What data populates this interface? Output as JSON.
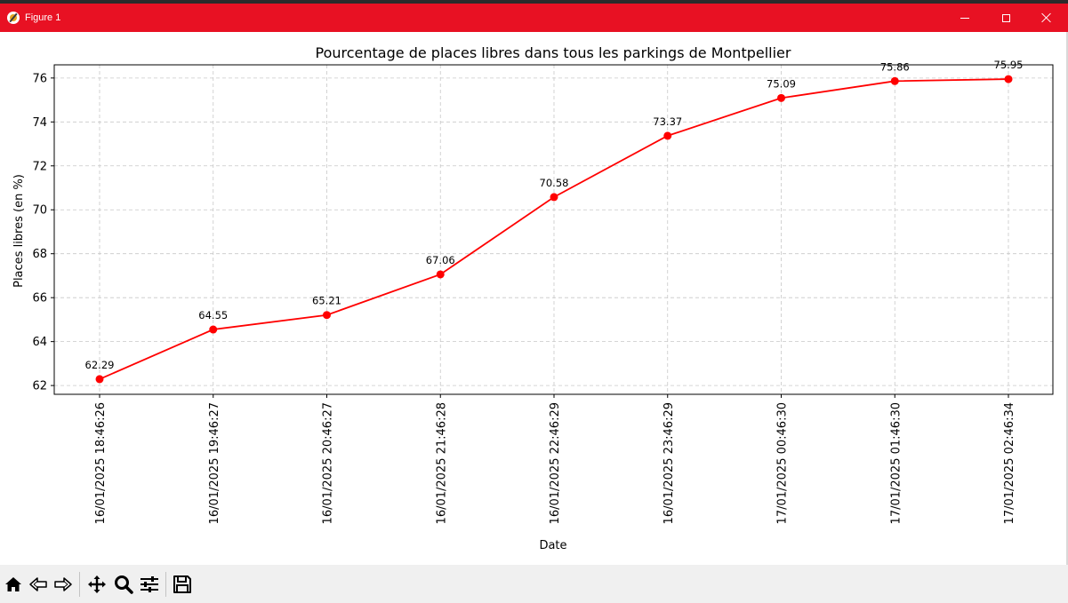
{
  "window": {
    "title": "Figure 1"
  },
  "toolbar": {
    "tools": [
      "home-icon",
      "back-icon",
      "forward-icon",
      "pan-icon",
      "zoom-icon",
      "configure-subplots-icon",
      "save-icon"
    ]
  },
  "colors": {
    "titlebar": "#e81123",
    "series": "#ff0000",
    "grid": "#c8c8c8"
  },
  "chart_data": {
    "type": "line",
    "title": "Pourcentage de places libres dans tous les parkings de Montpellier",
    "xlabel": "Date",
    "ylabel": "Places libres (en %)",
    "ylim": [
      61.6,
      76.6
    ],
    "yticks": [
      62,
      64,
      66,
      68,
      70,
      72,
      74,
      76
    ],
    "grid": true,
    "marker": "circle",
    "categories": [
      "16/01/2025 18:46:26",
      "16/01/2025 19:46:27",
      "16/01/2025 20:46:27",
      "16/01/2025 21:46:28",
      "16/01/2025 22:46:29",
      "16/01/2025 23:46:29",
      "17/01/2025 00:46:30",
      "17/01/2025 01:46:30",
      "17/01/2025 02:46:34"
    ],
    "values": [
      62.29,
      64.55,
      65.21,
      67.06,
      70.58,
      73.37,
      75.09,
      75.86,
      75.95
    ],
    "data_labels": [
      "62.29",
      "64.55",
      "65.21",
      "67.06",
      "70.58",
      "73.37",
      "75.09",
      "75.86",
      "75.95"
    ]
  }
}
